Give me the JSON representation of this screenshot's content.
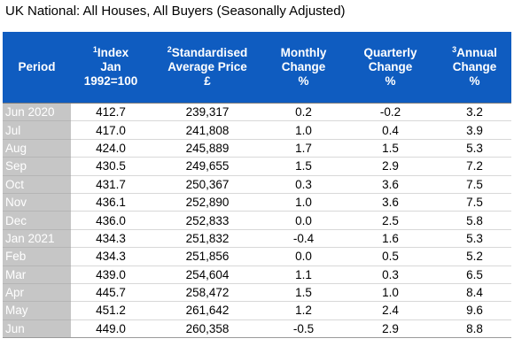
{
  "title": "UK National: All Houses, All Buyers (Seasonally Adjusted)",
  "header": {
    "period": "Period",
    "index_sup": "1",
    "index_line1": "Index",
    "index_line2": "Jan 1992=100",
    "price_sup": "2",
    "price_line1": "Standardised",
    "price_line2": "Average Price",
    "price_line3": "£",
    "monthly_line1": "Monthly",
    "monthly_line2": "Change",
    "monthly_line3": "%",
    "quarterly_line1": "Quarterly",
    "quarterly_line2": "Change",
    "quarterly_line3": "%",
    "annual_sup": "3",
    "annual_line1": "Annual",
    "annual_line2": "Change",
    "annual_line3": "%"
  },
  "rows": [
    {
      "period": "Jun 2020",
      "index": "412.7",
      "price": "239,317",
      "monthly": "0.2",
      "quarterly": "-0.2",
      "annual": "3.2"
    },
    {
      "period": "Jul",
      "index": "417.0",
      "price": "241,808",
      "monthly": "1.0",
      "quarterly": "0.4",
      "annual": "3.9"
    },
    {
      "period": "Aug",
      "index": "424.0",
      "price": "245,889",
      "monthly": "1.7",
      "quarterly": "1.5",
      "annual": "5.3"
    },
    {
      "period": "Sep",
      "index": "430.5",
      "price": "249,655",
      "monthly": "1.5",
      "quarterly": "2.9",
      "annual": "7.2"
    },
    {
      "period": "Oct",
      "index": "431.7",
      "price": "250,367",
      "monthly": "0.3",
      "quarterly": "3.6",
      "annual": "7.5"
    },
    {
      "period": "Nov",
      "index": "436.1",
      "price": "252,890",
      "monthly": "1.0",
      "quarterly": "3.6",
      "annual": "7.5"
    },
    {
      "period": "Dec",
      "index": "436.0",
      "price": "252,833",
      "monthly": "0.0",
      "quarterly": "2.5",
      "annual": "5.8"
    },
    {
      "period": "Jan 2021",
      "index": "434.3",
      "price": "251,832",
      "monthly": "-0.4",
      "quarterly": "1.6",
      "annual": "5.3"
    },
    {
      "period": "Feb",
      "index": "434.3",
      "price": "251,856",
      "monthly": "0.0",
      "quarterly": "0.5",
      "annual": "5.2"
    },
    {
      "period": "Mar",
      "index": "439.0",
      "price": "254,604",
      "monthly": "1.1",
      "quarterly": "0.3",
      "annual": "6.5"
    },
    {
      "period": "Apr",
      "index": "445.7",
      "price": "258,472",
      "monthly": "1.5",
      "quarterly": "1.0",
      "annual": "8.4"
    },
    {
      "period": "May",
      "index": "451.2",
      "price": "261,642",
      "monthly": "1.2",
      "quarterly": "2.4",
      "annual": "9.6"
    },
    {
      "period": "Jun",
      "index": "449.0",
      "price": "260,358",
      "monthly": "-0.5",
      "quarterly": "2.9",
      "annual": "8.8"
    }
  ],
  "colors": {
    "header_bg": "#0f5cc0",
    "period_bg": "#c6c6c6"
  }
}
